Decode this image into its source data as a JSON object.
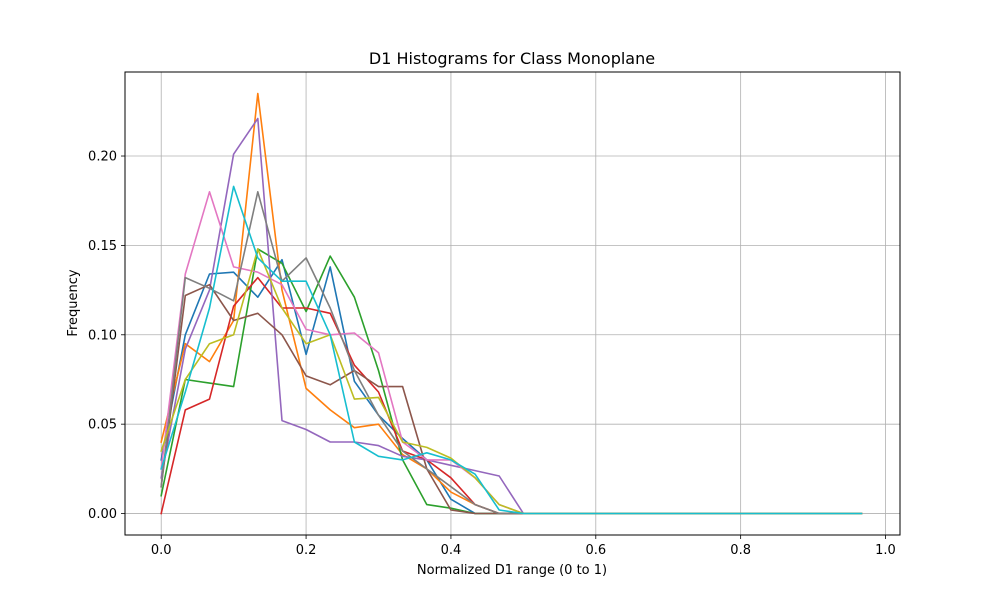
{
  "chart_data": {
    "type": "line",
    "title": "D1 Histograms for Class Monoplane",
    "xlabel": "Normalized D1 range (0 to 1)",
    "ylabel": "Frequency",
    "xlim": [
      -0.05,
      1.02
    ],
    "ylim": [
      -0.012,
      0.247
    ],
    "xticks": [
      0.0,
      0.2,
      0.4,
      0.6,
      0.8,
      1.0
    ],
    "xtick_labels": [
      "0.0",
      "0.2",
      "0.4",
      "0.6",
      "0.8",
      "1.0"
    ],
    "yticks": [
      0.0,
      0.05,
      0.1,
      0.15,
      0.2
    ],
    "ytick_labels": [
      "0.00",
      "0.05",
      "0.10",
      "0.15",
      "0.20"
    ],
    "grid": true,
    "x": [
      0.0,
      0.0333,
      0.0667,
      0.1,
      0.1333,
      0.1667,
      0.2,
      0.2333,
      0.2667,
      0.3,
      0.3333,
      0.3667,
      0.4,
      0.4333,
      0.4667,
      0.5,
      0.5333,
      0.5667,
      0.6,
      0.6333,
      0.6667,
      0.7,
      0.7333,
      0.7667,
      0.8,
      0.8333,
      0.8667,
      0.9,
      0.9333,
      0.9667
    ],
    "series": [
      {
        "color": "#1f77b4",
        "values": [
          0.03,
          0.1,
          0.134,
          0.135,
          0.121,
          0.142,
          0.089,
          0.138,
          0.074,
          0.055,
          0.042,
          0.03,
          0.008,
          0.0,
          0.0,
          0.0,
          0,
          0,
          0,
          0,
          0,
          0,
          0,
          0,
          0,
          0,
          0,
          0,
          0,
          0
        ]
      },
      {
        "color": "#ff7f0e",
        "values": [
          0.04,
          0.095,
          0.085,
          0.108,
          0.235,
          0.125,
          0.07,
          0.058,
          0.048,
          0.05,
          0.033,
          0.025,
          0.012,
          0.005,
          0.0,
          0.0,
          0,
          0,
          0,
          0,
          0,
          0,
          0,
          0,
          0,
          0,
          0,
          0,
          0,
          0
        ]
      },
      {
        "color": "#2ca02c",
        "values": [
          0.01,
          0.075,
          0.073,
          0.071,
          0.148,
          0.14,
          0.113,
          0.144,
          0.121,
          0.08,
          0.03,
          0.005,
          0.003,
          0.0,
          0.0,
          0.0,
          0,
          0,
          0,
          0,
          0,
          0,
          0,
          0,
          0,
          0,
          0,
          0,
          0,
          0
        ]
      },
      {
        "color": "#d62728",
        "values": [
          0.0,
          0.058,
          0.064,
          0.116,
          0.132,
          0.115,
          0.115,
          0.112,
          0.083,
          0.068,
          0.035,
          0.03,
          0.02,
          0.005,
          0.0,
          0.0,
          0,
          0,
          0,
          0,
          0,
          0,
          0,
          0,
          0,
          0,
          0,
          0,
          0,
          0
        ]
      },
      {
        "color": "#9467bd",
        "values": [
          0.02,
          0.092,
          0.125,
          0.201,
          0.221,
          0.052,
          0.047,
          0.04,
          0.04,
          0.038,
          0.032,
          0.03,
          0.027,
          0.024,
          0.021,
          0.0,
          0,
          0,
          0,
          0,
          0,
          0,
          0,
          0,
          0,
          0,
          0,
          0,
          0,
          0
        ]
      },
      {
        "color": "#8c564b",
        "values": [
          0.015,
          0.122,
          0.128,
          0.108,
          0.112,
          0.1,
          0.077,
          0.072,
          0.08,
          0.071,
          0.071,
          0.025,
          0.002,
          0.0,
          0.0,
          0.0,
          0,
          0,
          0,
          0,
          0,
          0,
          0,
          0,
          0,
          0,
          0,
          0,
          0,
          0
        ]
      },
      {
        "color": "#e377c2",
        "values": [
          0.025,
          0.134,
          0.18,
          0.138,
          0.135,
          0.128,
          0.103,
          0.1,
          0.101,
          0.09,
          0.04,
          0.03,
          0.03,
          0.02,
          0.005,
          0.0,
          0,
          0,
          0,
          0,
          0,
          0,
          0,
          0,
          0,
          0,
          0,
          0,
          0,
          0
        ]
      },
      {
        "color": "#7f7f7f",
        "values": [
          0.015,
          0.132,
          0.126,
          0.119,
          0.18,
          0.13,
          0.143,
          0.115,
          0.08,
          0.055,
          0.035,
          0.025,
          0.015,
          0.005,
          0.0,
          0.0,
          0,
          0,
          0,
          0,
          0,
          0,
          0,
          0,
          0,
          0,
          0,
          0,
          0,
          0
        ]
      },
      {
        "color": "#bcbd22",
        "values": [
          0.035,
          0.075,
          0.095,
          0.1,
          0.148,
          0.115,
          0.095,
          0.1,
          0.064,
          0.065,
          0.04,
          0.037,
          0.031,
          0.02,
          0.005,
          0.0,
          0,
          0,
          0,
          0,
          0,
          0,
          0,
          0,
          0,
          0,
          0,
          0,
          0,
          0
        ]
      },
      {
        "color": "#17becf",
        "values": [
          0.025,
          0.068,
          0.115,
          0.183,
          0.143,
          0.13,
          0.13,
          0.1,
          0.04,
          0.032,
          0.03,
          0.034,
          0.03,
          0.022,
          0.002,
          0.0,
          0,
          0,
          0,
          0,
          0,
          0,
          0,
          0,
          0,
          0,
          0,
          0,
          0,
          0
        ]
      }
    ]
  }
}
